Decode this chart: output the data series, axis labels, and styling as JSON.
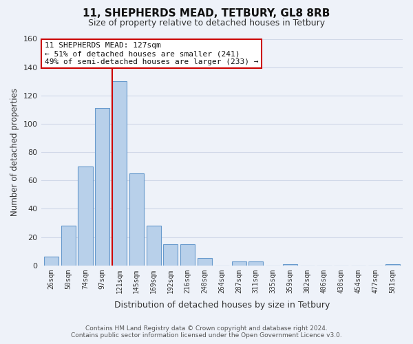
{
  "title": "11, SHEPHERDS MEAD, TETBURY, GL8 8RB",
  "subtitle": "Size of property relative to detached houses in Tetbury",
  "xlabel": "Distribution of detached houses by size in Tetbury",
  "ylabel": "Number of detached properties",
  "bar_labels": [
    "26sqm",
    "50sqm",
    "74sqm",
    "97sqm",
    "121sqm",
    "145sqm",
    "169sqm",
    "192sqm",
    "216sqm",
    "240sqm",
    "264sqm",
    "287sqm",
    "311sqm",
    "335sqm",
    "359sqm",
    "382sqm",
    "406sqm",
    "430sqm",
    "454sqm",
    "477sqm",
    "501sqm"
  ],
  "bar_heights": [
    6,
    28,
    70,
    111,
    130,
    65,
    28,
    15,
    15,
    5,
    0,
    3,
    3,
    0,
    1,
    0,
    0,
    0,
    0,
    0,
    1
  ],
  "bar_color": "#b8d0ea",
  "bar_edge_color": "#6699cc",
  "highlight_bar_index": 4,
  "highlight_color": "#cc0000",
  "annotation_line1": "11 SHEPHERDS MEAD: 127sqm",
  "annotation_line2": "← 51% of detached houses are smaller (241)",
  "annotation_line3": "49% of semi-detached houses are larger (233) →",
  "annotation_box_color": "#ffffff",
  "annotation_box_edge": "#cc0000",
  "ylim": [
    0,
    160
  ],
  "yticks": [
    0,
    20,
    40,
    60,
    80,
    100,
    120,
    140,
    160
  ],
  "footer_line1": "Contains HM Land Registry data © Crown copyright and database right 2024.",
  "footer_line2": "Contains public sector information licensed under the Open Government Licence v3.0.",
  "bg_color": "#eef2f9",
  "grid_color": "#d0d8e8",
  "figsize": [
    6.0,
    5.0
  ],
  "dpi": 100
}
